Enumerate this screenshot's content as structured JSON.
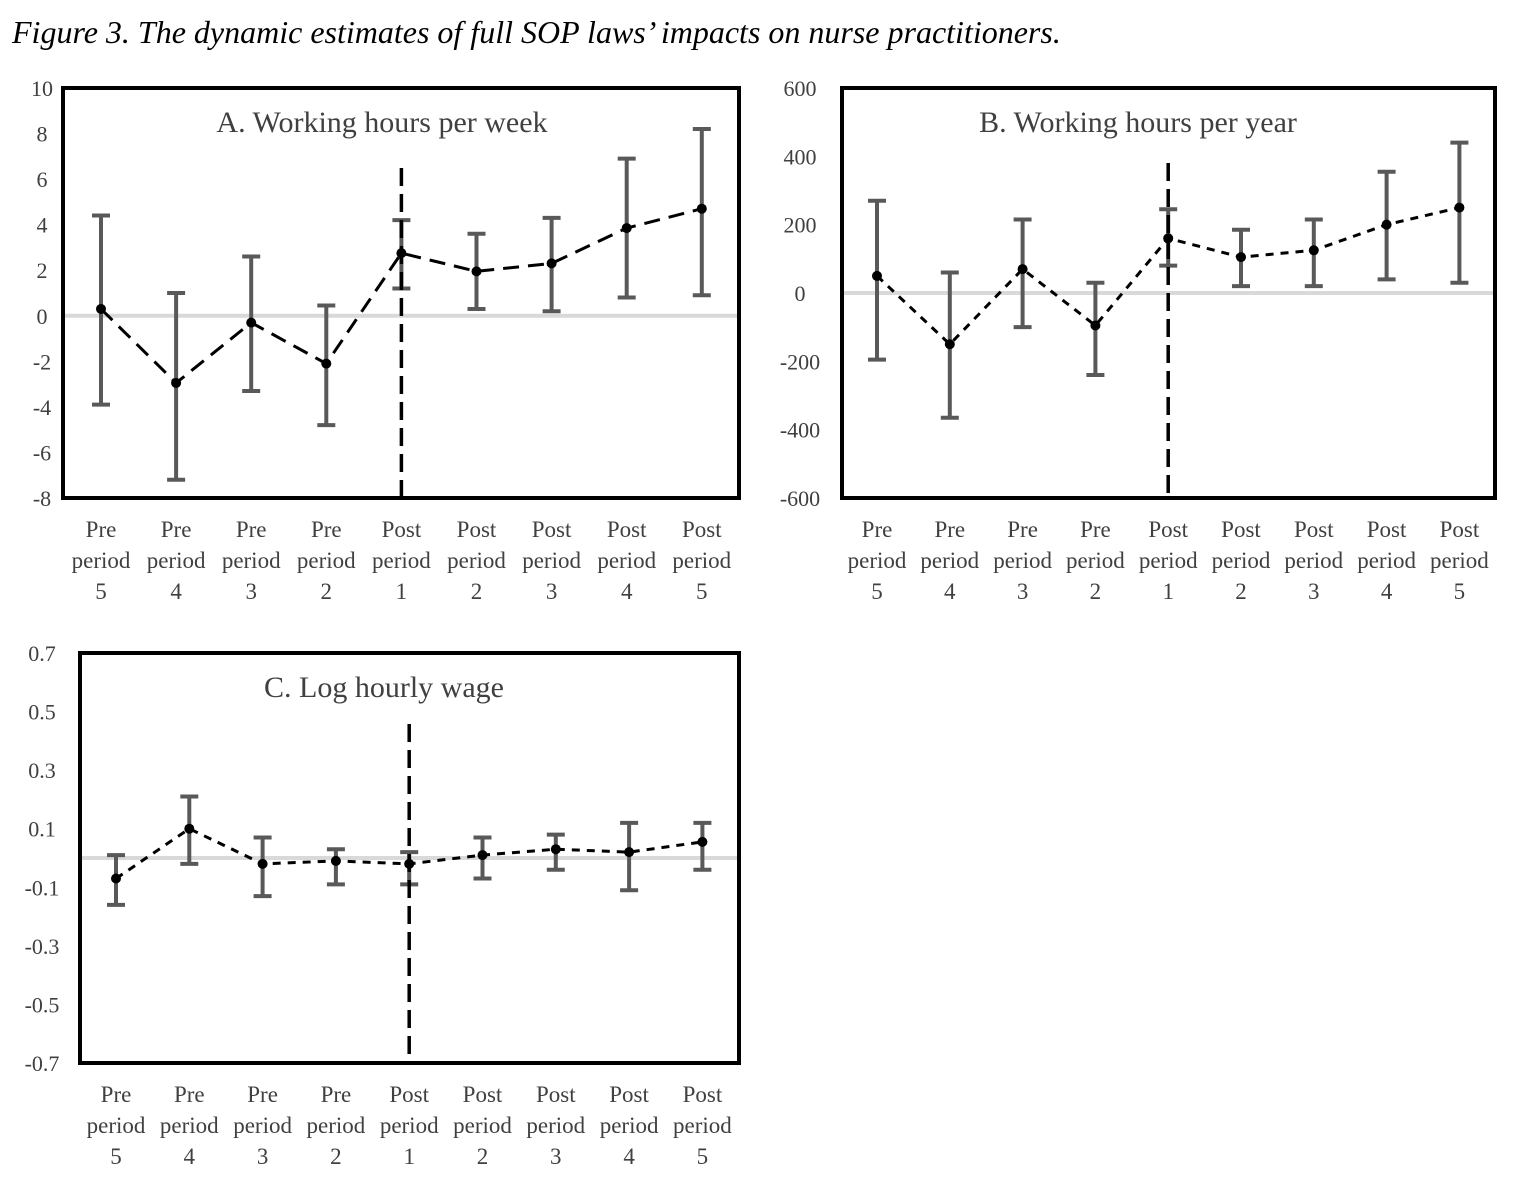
{
  "caption": "Figure 3. The dynamic estimates of full SOP laws’ impacts on nurse practitioners.",
  "chart_data": [
    {
      "type": "line",
      "panel": "A",
      "title": "A. Working hours per week",
      "ylim": [
        -8,
        10
      ],
      "yticks": [
        "10",
        "8",
        "6",
        "4",
        "2",
        "0",
        "-2",
        "-4",
        "-6",
        "-8"
      ],
      "categories": [
        [
          "Pre",
          "period",
          "5"
        ],
        [
          "Pre",
          "period",
          "4"
        ],
        [
          "Pre",
          "period",
          "3"
        ],
        [
          "Pre",
          "period",
          "2"
        ],
        [
          "Post",
          "period",
          "1"
        ],
        [
          "Post",
          "period",
          "2"
        ],
        [
          "Post",
          "period",
          "3"
        ],
        [
          "Post",
          "period",
          "4"
        ],
        [
          "Post",
          "period",
          "5"
        ]
      ],
      "values": [
        0.3,
        -2.95,
        -0.3,
        -2.1,
        2.75,
        1.95,
        2.3,
        3.85,
        4.7
      ],
      "lower": [
        -3.9,
        -7.2,
        -3.3,
        -4.8,
        1.2,
        0.3,
        0.2,
        0.8,
        0.9
      ],
      "upper": [
        4.4,
        1.0,
        2.6,
        0.45,
        4.2,
        3.6,
        4.3,
        6.9,
        8.2
      ],
      "policy_line_at": "Post period 1"
    },
    {
      "type": "line",
      "panel": "B",
      "title": "B. Working hours per year",
      "ylim": [
        -600,
        600
      ],
      "yticks": [
        "600",
        "400",
        "200",
        "0",
        "-200",
        "-400",
        "-600"
      ],
      "categories": [
        [
          "Pre",
          "period",
          "5"
        ],
        [
          "Pre",
          "period",
          "4"
        ],
        [
          "Pre",
          "period",
          "3"
        ],
        [
          "Pre",
          "period",
          "2"
        ],
        [
          "Post",
          "period",
          "1"
        ],
        [
          "Post",
          "period",
          "2"
        ],
        [
          "Post",
          "period",
          "3"
        ],
        [
          "Post",
          "period",
          "4"
        ],
        [
          "Post",
          "period",
          "5"
        ]
      ],
      "values": [
        50,
        -150,
        70,
        -95,
        160,
        105,
        125,
        200,
        250
      ],
      "lower": [
        -195,
        -365,
        -100,
        -240,
        80,
        20,
        20,
        40,
        30
      ],
      "upper": [
        270,
        60,
        215,
        30,
        245,
        185,
        215,
        355,
        440
      ],
      "policy_line_at": "Post period 1"
    },
    {
      "type": "line",
      "panel": "C",
      "title": "C. Log hourly wage",
      "ylim": [
        -0.7,
        0.7
      ],
      "yticks": [
        "0.7",
        "0.5",
        "0.3",
        "0.1",
        "-0.1",
        "-0.3",
        "-0.5",
        "-0.7"
      ],
      "categories": [
        [
          "Pre",
          "period",
          "5"
        ],
        [
          "Pre",
          "period",
          "4"
        ],
        [
          "Pre",
          "period",
          "3"
        ],
        [
          "Pre",
          "period",
          "2"
        ],
        [
          "Post",
          "period",
          "1"
        ],
        [
          "Post",
          "period",
          "2"
        ],
        [
          "Post",
          "period",
          "3"
        ],
        [
          "Post",
          "period",
          "4"
        ],
        [
          "Post",
          "period",
          "5"
        ]
      ],
      "values": [
        -0.07,
        0.1,
        -0.02,
        -0.01,
        -0.02,
        0.01,
        0.03,
        0.02,
        0.055
      ],
      "lower": [
        -0.16,
        -0.02,
        -0.13,
        -0.09,
        -0.09,
        -0.07,
        -0.04,
        -0.11,
        -0.04
      ],
      "upper": [
        0.01,
        0.21,
        0.07,
        0.03,
        0.02,
        0.07,
        0.08,
        0.12,
        0.12
      ],
      "policy_line_at": "Post period 1"
    }
  ]
}
